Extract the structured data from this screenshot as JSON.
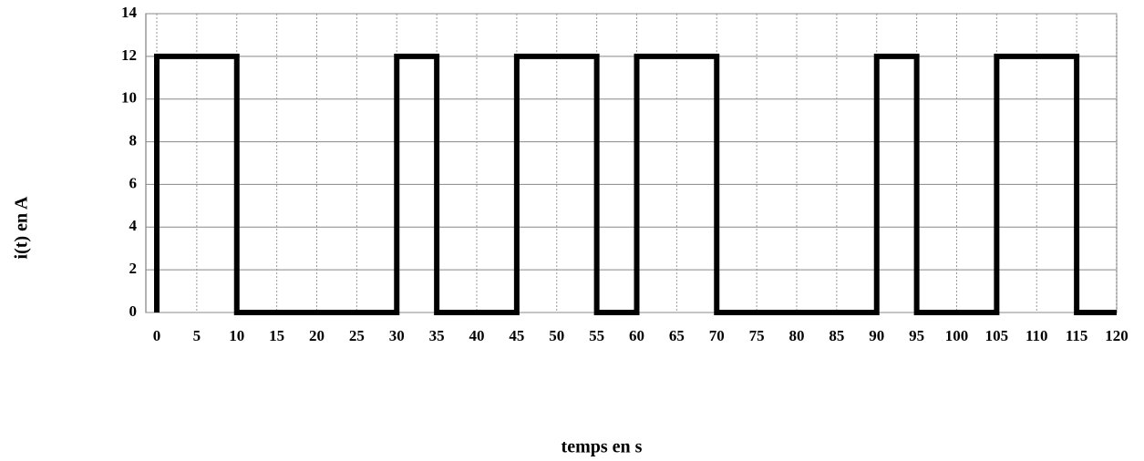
{
  "chart_data": {
    "type": "line",
    "x_label": "temps en s",
    "y_label": "i(t) en A",
    "series": [
      {
        "color": "#000000",
        "x": [
          0,
          0,
          10,
          10,
          30,
          30,
          35,
          35,
          45,
          45,
          55,
          55,
          60,
          60,
          70,
          70,
          90,
          90,
          95,
          95,
          105,
          105,
          115,
          115,
          120
        ],
        "values": [
          0,
          12,
          12,
          0,
          0,
          12,
          12,
          0,
          0,
          12,
          12,
          0,
          0,
          12,
          12,
          0,
          0,
          12,
          12,
          0,
          0,
          12,
          12,
          0,
          0
        ]
      }
    ],
    "xlim": [
      0,
      120
    ],
    "xticks": [
      0,
      5,
      10,
      15,
      20,
      25,
      30,
      35,
      40,
      45,
      50,
      55,
      60,
      65,
      70,
      75,
      80,
      85,
      90,
      95,
      100,
      105,
      110,
      115,
      120
    ],
    "ylim": [
      0,
      14
    ],
    "yticks": [
      0,
      2,
      4,
      6,
      8,
      10,
      12,
      14
    ],
    "grid": true
  }
}
